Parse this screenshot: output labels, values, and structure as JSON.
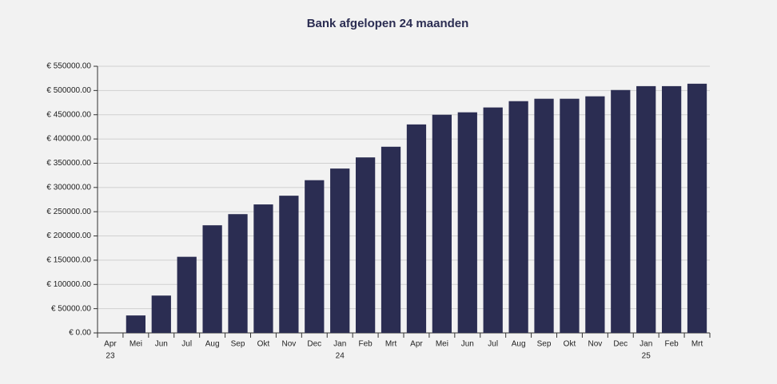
{
  "chart_data": {
    "type": "bar",
    "title": "Bank afgelopen 24 maanden",
    "categories": [
      "Apr",
      "Mei",
      "Jun",
      "Jul",
      "Aug",
      "Sep",
      "Okt",
      "Nov",
      "Dec",
      "Jan",
      "Feb",
      "Mrt",
      "Apr",
      "Mei",
      "Jun",
      "Jul",
      "Aug",
      "Sep",
      "Okt",
      "Nov",
      "Dec",
      "Jan",
      "Feb",
      "Mrt"
    ],
    "category_years": [
      "23",
      null,
      null,
      null,
      null,
      null,
      null,
      null,
      null,
      "24",
      null,
      null,
      null,
      null,
      null,
      null,
      null,
      null,
      null,
      null,
      null,
      "25",
      null,
      null
    ],
    "values": [
      0,
      36000,
      77000,
      157000,
      222000,
      245000,
      265000,
      283000,
      315000,
      339000,
      362000,
      384000,
      430000,
      450000,
      455000,
      465000,
      478000,
      483000,
      483000,
      488000,
      501000,
      509000,
      509000,
      514000
    ],
    "color": "#2b2d52",
    "ylim": [
      0,
      550000
    ],
    "yticks": [
      {
        "value": 0,
        "label": "€ 0.00"
      },
      {
        "value": 50000,
        "label": "€ 50000.00"
      },
      {
        "value": 100000,
        "label": "€ 100000.00"
      },
      {
        "value": 150000,
        "label": "€ 150000.00"
      },
      {
        "value": 200000,
        "label": "€ 200000.00"
      },
      {
        "value": 250000,
        "label": "€ 250000.00"
      },
      {
        "value": 300000,
        "label": "€ 300000.00"
      },
      {
        "value": 350000,
        "label": "€ 350000.00"
      },
      {
        "value": 400000,
        "label": "€ 400000.00"
      },
      {
        "value": 450000,
        "label": "€ 450000.00"
      },
      {
        "value": 500000,
        "label": "€ 500000.00"
      },
      {
        "value": 550000,
        "label": "€ 550000.00"
      }
    ],
    "grid": true
  }
}
